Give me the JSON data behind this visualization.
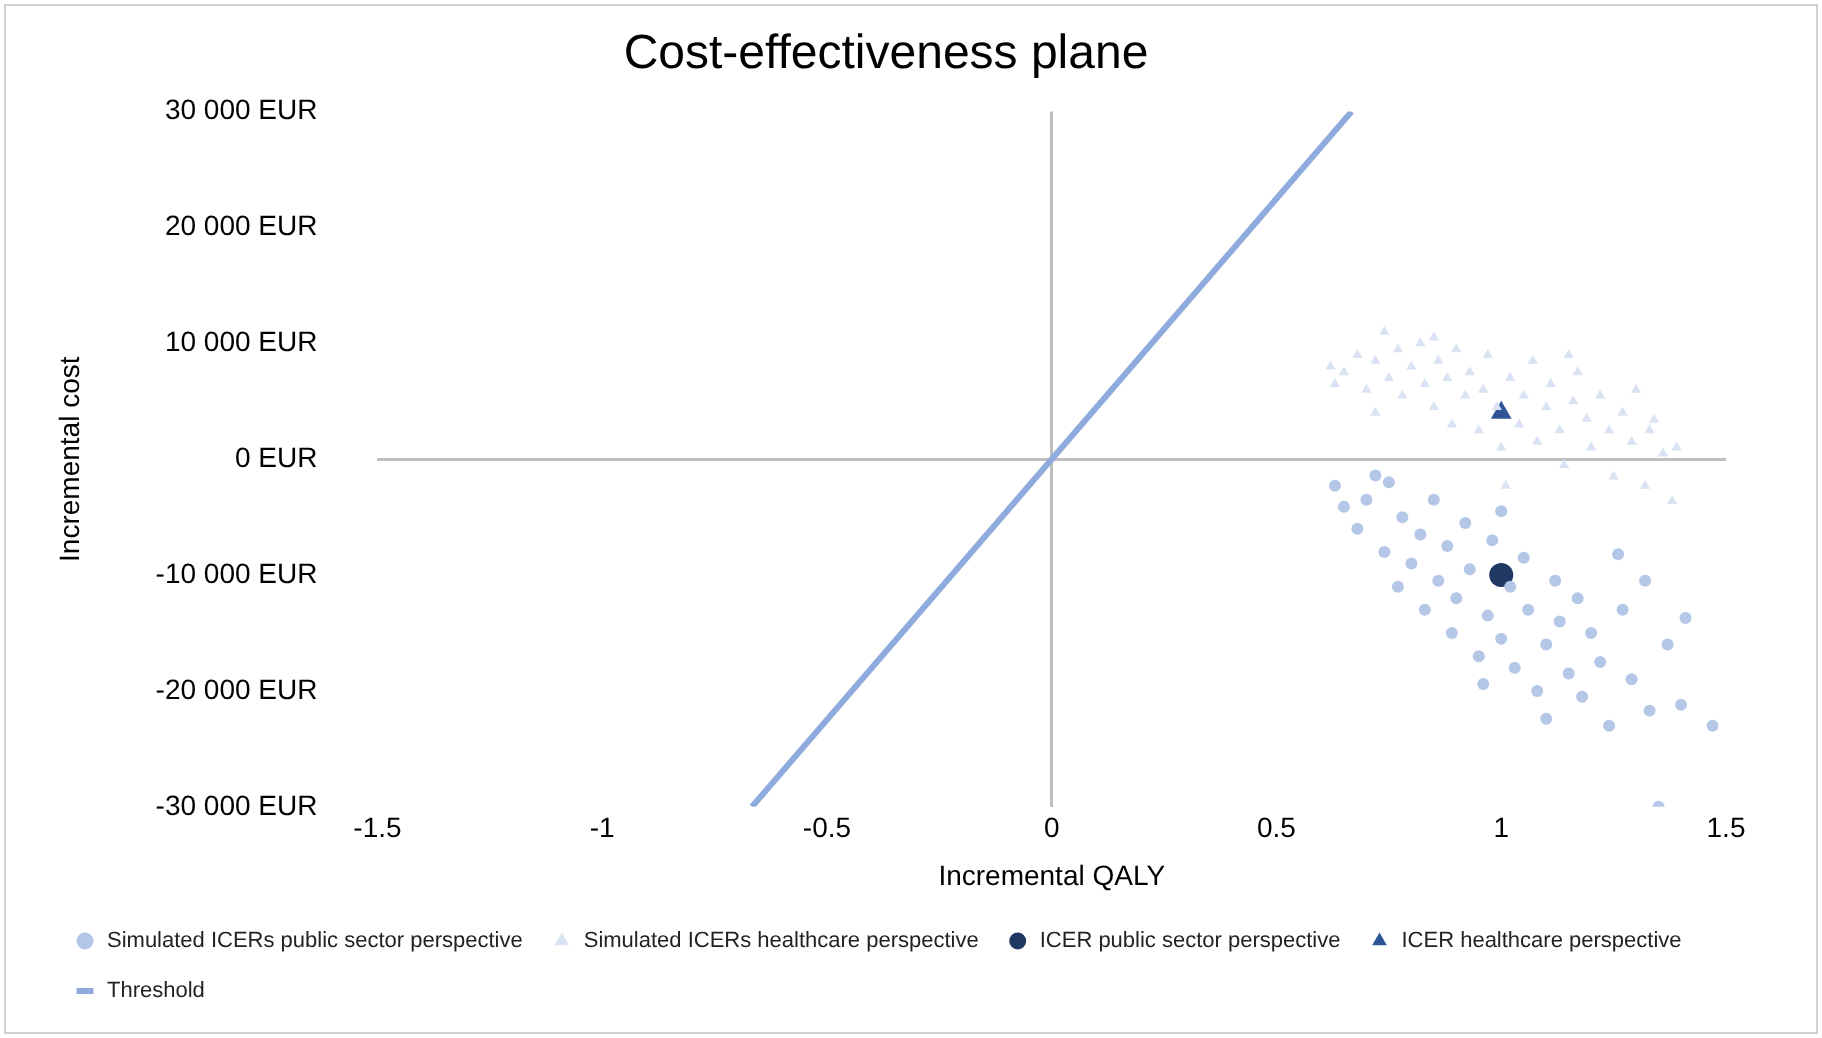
{
  "chart_data": {
    "type": "scatter",
    "title": "Cost-effectiveness plane",
    "xlabel": "Incremental QALY",
    "ylabel": "Incremental cost",
    "xlim": [
      -1.5,
      1.5
    ],
    "xticks": [
      -1.5,
      -1,
      -0.5,
      0,
      0.5,
      1,
      1.5
    ],
    "ylim": [
      -30000,
      30000
    ],
    "yticks": [
      {
        "value": -30000,
        "label": "-30 000 EUR"
      },
      {
        "value": -20000,
        "label": "-20 000 EUR"
      },
      {
        "value": -10000,
        "label": "-10 000 EUR"
      },
      {
        "value": 0,
        "label": "0 EUR"
      },
      {
        "value": 10000,
        "label": "10 000 EUR"
      },
      {
        "value": 20000,
        "label": "20 000 EUR"
      },
      {
        "value": 30000,
        "label": "30 000 EUR"
      }
    ],
    "legend": "bottom",
    "series": [
      {
        "name": "Simulated ICERs public sector perspective",
        "marker": "circle",
        "color": "#b4c7e7",
        "x": [
          0.63,
          0.65,
          0.68,
          0.7,
          0.72,
          0.74,
          0.77,
          0.78,
          0.8,
          0.82,
          0.83,
          0.85,
          0.86,
          0.88,
          0.89,
          0.9,
          0.92,
          0.93,
          0.95,
          0.96,
          0.97,
          0.98,
          1.0,
          1.02,
          1.03,
          1.05,
          1.06,
          1.08,
          1.1,
          1.1,
          1.12,
          1.13,
          1.15,
          1.17,
          1.18,
          1.2,
          1.22,
          1.24,
          1.26,
          1.27,
          1.29,
          1.32,
          1.33,
          1.35,
          1.37,
          1.4,
          1.41,
          1.47,
          0.75,
          1.0
        ],
        "values": [
          -2300,
          -4100,
          -6000,
          -3500,
          -1400,
          -8000,
          -11000,
          -5000,
          -9000,
          -6500,
          -13000,
          -3500,
          -10500,
          -7500,
          -15000,
          -12000,
          -5500,
          -9500,
          -17000,
          -19400,
          -13500,
          -7000,
          -15500,
          -11000,
          -18000,
          -8500,
          -13000,
          -20000,
          -22400,
          -16000,
          -10500,
          -14000,
          -18500,
          -12000,
          -20500,
          -15000,
          -17500,
          -23000,
          -8200,
          -13000,
          -19000,
          -10500,
          -21700,
          -30000,
          -16000,
          -21200,
          -13700,
          -23000,
          -2000,
          -4500
        ]
      },
      {
        "name": "Simulated ICERs healthcare perspective",
        "marker": "triangle",
        "color": "#dae3f3",
        "x": [
          0.62,
          0.63,
          0.65,
          0.68,
          0.7,
          0.72,
          0.74,
          0.75,
          0.77,
          0.78,
          0.8,
          0.82,
          0.83,
          0.85,
          0.86,
          0.88,
          0.89,
          0.9,
          0.92,
          0.93,
          0.95,
          0.96,
          0.97,
          0.99,
          1.0,
          1.01,
          1.02,
          1.04,
          1.05,
          1.07,
          1.08,
          1.1,
          1.11,
          1.13,
          1.14,
          1.16,
          1.17,
          1.19,
          1.2,
          1.22,
          1.24,
          1.25,
          1.27,
          1.29,
          1.3,
          1.32,
          1.33,
          1.34,
          1.36,
          1.38,
          1.39,
          0.72,
          0.85,
          1.15
        ],
        "values": [
          8000,
          6500,
          7500,
          9000,
          6000,
          8500,
          11000,
          7000,
          9500,
          5500,
          8000,
          10000,
          6500,
          4500,
          8500,
          7000,
          3000,
          9500,
          5500,
          7500,
          2500,
          6000,
          9000,
          4500,
          1000,
          -2300,
          7000,
          3000,
          5500,
          8500,
          1500,
          4500,
          6500,
          2500,
          -500,
          5000,
          7500,
          3500,
          1000,
          5500,
          2500,
          -1500,
          4000,
          1500,
          6000,
          -2300,
          2500,
          3400,
          500,
          -3600,
          1000,
          4000,
          10500,
          9000
        ]
      },
      {
        "name": "ICER public sector perspective",
        "marker": "circle",
        "color": "#203864",
        "x": [
          1.0
        ],
        "values": [
          -10000
        ]
      },
      {
        "name": "ICER healthcare perspective",
        "marker": "triangle",
        "color": "#2f5597",
        "x": [
          1.0
        ],
        "values": [
          4000
        ]
      },
      {
        "name": "Threshold",
        "type": "line",
        "marker": "none",
        "color": "#8faadc",
        "x": [
          -0.667,
          0.667
        ],
        "values": [
          -30000,
          30000
        ]
      }
    ]
  }
}
